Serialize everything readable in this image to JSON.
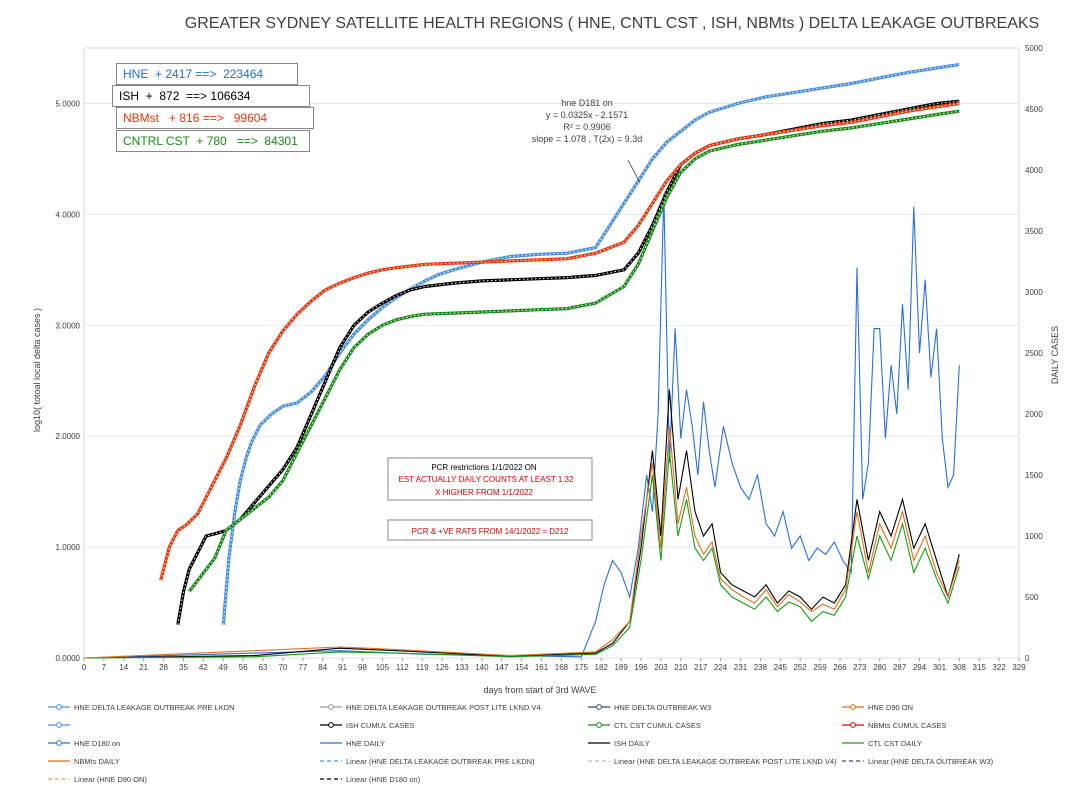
{
  "chart_data": {
    "type": "line",
    "title": "GREATER SYDNEY SATELLITE HEALTH REGIONS ( HNE,  CNTL CST , ISH, NBMts ) DELTA LEAKAGE OUTBREAKS",
    "xlabel": "days from start of 3rd WAVE",
    "ylabel_left": "log10( totoal local delta cases )",
    "ylabel_right": "DAILY CASES",
    "xlim": [
      0,
      329
    ],
    "ylim_left": [
      0,
      5.5
    ],
    "ylim_right": [
      0,
      5000
    ],
    "x_ticks": [
      "0",
      "7",
      "14",
      "21",
      "28",
      "35",
      "42",
      "49",
      "56",
      "63",
      "70",
      "77",
      "84",
      "91",
      "98",
      "105",
      "112",
      "119",
      "126",
      "133",
      "140",
      "147",
      "154",
      "161",
      "168",
      "175",
      "182",
      "189",
      "196",
      "203",
      "210",
      "217",
      "224",
      "231",
      "238",
      "245",
      "252",
      "259",
      "266",
      "273",
      "280",
      "287",
      "294",
      "301",
      "308",
      "315",
      "322",
      "329"
    ],
    "y_left_ticks": [
      "0.0000",
      "1.0000",
      "2.0000",
      "3.0000",
      "4.0000",
      "5.0000"
    ],
    "y_right_ticks": [
      "0",
      "500",
      "1000",
      "1500",
      "2000",
      "2500",
      "3000",
      "3500",
      "4000",
      "4500",
      "5000"
    ],
    "summary_boxes": [
      {
        "text": "HNE  + 2417 ==>  223464",
        "color": "#1f6fd6"
      },
      {
        "text": "ISH  +  872  ==> 106634",
        "color": "#000000"
      },
      {
        "text": "NBMst   + 816 ==>   99604",
        "color": "#e8380d"
      },
      {
        "text": "CNTRL CST  + 780   ==>  84301",
        "color": "#1a8a1a"
      }
    ],
    "regression_annotation": [
      "hne D181 on",
      "y = 0.0325x - 2.1571",
      "R² = 0.9906",
      "slope = 1.078 , T(2x) = 9.3d"
    ],
    "pcr_note": [
      "PCR restrictions 1/1/2022 ON",
      "EST ACTUALLY DAILY COUNTS AT LEAST 1.32",
      "X HIGHER FROM 1/1/2022"
    ],
    "rats_note": "PCR & +VE RATS FROM 14/1/2022 = D212",
    "legend": [
      "HNE DELTA LEAKAGE OUTBREAK PRE LKDN",
      "HNE DELTA LEAKAGE OUTBREAK POST LITE LKND V4",
      "HNE DELTA OUTBREAK W3",
      "HNE D90 ON",
      "",
      "ISH CUMUL CASES",
      "CTL CST CUMUL CASES",
      "NBMts CUMUL CASES",
      "HNE D180 on",
      "HNE DAILY",
      "ISH DAILY",
      "CTL CST DAILY",
      "NBMts DAILY",
      "Linear (HNE DELTA LEAKAGE OUTBREAK PRE LKDN)",
      "Linear (HNE DELTA LEAKAGE OUTBREAK POST LITE LKND V4)",
      "Linear (HNE DELTA OUTBREAK W3)",
      "Linear (HNE D90 ON)",
      "Linear (HNE D180 on)"
    ],
    "series_cumulative_log10": {
      "HNE": {
        "color": "#4a8fe0",
        "x": [
          49,
          51,
          53,
          55,
          57,
          59,
          62,
          66,
          70,
          75,
          80,
          85,
          90,
          95,
          100,
          105,
          110,
          115,
          120,
          125,
          130,
          140,
          150,
          160,
          170,
          180,
          185,
          190,
          195,
          200,
          205,
          210,
          215,
          220,
          230,
          240,
          250,
          260,
          270,
          280,
          290,
          300,
          308
        ],
        "y": [
          0.3,
          0.9,
          1.3,
          1.6,
          1.8,
          1.95,
          2.1,
          2.2,
          2.27,
          2.3,
          2.4,
          2.55,
          2.75,
          2.92,
          3.05,
          3.16,
          3.25,
          3.33,
          3.4,
          3.46,
          3.5,
          3.57,
          3.62,
          3.64,
          3.65,
          3.7,
          3.9,
          4.1,
          4.3,
          4.5,
          4.65,
          4.75,
          4.85,
          4.92,
          5.0,
          5.06,
          5.1,
          5.14,
          5.18,
          5.23,
          5.28,
          5.32,
          5.35
        ]
      },
      "ISH": {
        "color": "#000000",
        "x": [
          33,
          35,
          37,
          40,
          43,
          46,
          50,
          55,
          60,
          65,
          70,
          75,
          80,
          85,
          90,
          95,
          100,
          105,
          110,
          115,
          120,
          130,
          140,
          150,
          160,
          170,
          180,
          190,
          195,
          200,
          205,
          210,
          215,
          220,
          230,
          240,
          250,
          260,
          270,
          280,
          290,
          300,
          308
        ],
        "y": [
          0.3,
          0.6,
          0.8,
          0.95,
          1.1,
          1.12,
          1.15,
          1.25,
          1.4,
          1.55,
          1.7,
          1.9,
          2.2,
          2.5,
          2.8,
          3.0,
          3.12,
          3.2,
          3.27,
          3.32,
          3.35,
          3.38,
          3.4,
          3.41,
          3.42,
          3.43,
          3.45,
          3.5,
          3.65,
          3.9,
          4.2,
          4.45,
          4.55,
          4.62,
          4.68,
          4.72,
          4.77,
          4.82,
          4.85,
          4.9,
          4.95,
          5.0,
          5.02
        ]
      },
      "NBMts": {
        "color": "#e8380d",
        "x": [
          27,
          30,
          33,
          36,
          40,
          43,
          46,
          50,
          55,
          60,
          65,
          70,
          75,
          80,
          85,
          90,
          95,
          100,
          105,
          110,
          120,
          130,
          140,
          150,
          160,
          170,
          180,
          190,
          195,
          200,
          205,
          210,
          215,
          220,
          230,
          240,
          250,
          260,
          270,
          280,
          290,
          300,
          308
        ],
        "y": [
          0.7,
          1.0,
          1.15,
          1.2,
          1.3,
          1.45,
          1.6,
          1.8,
          2.1,
          2.45,
          2.75,
          2.95,
          3.1,
          3.22,
          3.32,
          3.38,
          3.43,
          3.47,
          3.5,
          3.52,
          3.55,
          3.56,
          3.57,
          3.58,
          3.59,
          3.6,
          3.65,
          3.75,
          3.9,
          4.1,
          4.3,
          4.45,
          4.55,
          4.62,
          4.68,
          4.72,
          4.76,
          4.8,
          4.83,
          4.88,
          4.93,
          4.97,
          5.0
        ]
      },
      "CTL_CST": {
        "color": "#1a8a1a",
        "x": [
          37,
          40,
          43,
          46,
          50,
          55,
          60,
          65,
          70,
          75,
          80,
          85,
          90,
          95,
          100,
          105,
          110,
          115,
          120,
          130,
          140,
          150,
          160,
          170,
          180,
          190,
          195,
          200,
          205,
          210,
          215,
          220,
          230,
          240,
          250,
          260,
          270,
          280,
          290,
          300,
          308
        ],
        "y": [
          0.6,
          0.7,
          0.8,
          0.9,
          1.15,
          1.25,
          1.35,
          1.45,
          1.6,
          1.85,
          2.1,
          2.35,
          2.6,
          2.8,
          2.92,
          3.0,
          3.05,
          3.08,
          3.1,
          3.11,
          3.12,
          3.13,
          3.14,
          3.15,
          3.2,
          3.35,
          3.55,
          3.85,
          4.15,
          4.38,
          4.5,
          4.57,
          4.63,
          4.67,
          4.71,
          4.75,
          4.78,
          4.82,
          4.86,
          4.9,
          4.93
        ]
      }
    },
    "series_daily": {
      "HNE_DAILY": {
        "color": "#2a6fdb",
        "x": [
          0,
          30,
          60,
          90,
          120,
          150,
          175,
          180,
          183,
          186,
          189,
          192,
          195,
          198,
          200,
          202,
          204,
          206,
          208,
          210,
          212,
          214,
          216,
          218,
          220,
          222,
          225,
          228,
          231,
          234,
          237,
          240,
          243,
          246,
          249,
          252,
          255,
          258,
          261,
          264,
          267,
          270,
          272,
          274,
          276,
          278,
          280,
          282,
          284,
          286,
          288,
          290,
          292,
          294,
          296,
          298,
          300,
          302,
          304,
          306,
          308
        ],
        "y": [
          0,
          20,
          40,
          60,
          30,
          20,
          10,
          300,
          600,
          800,
          700,
          500,
          900,
          1500,
          1200,
          2000,
          3800,
          1600,
          2700,
          1800,
          2200,
          1900,
          1500,
          2100,
          1700,
          1400,
          1900,
          1600,
          1400,
          1300,
          1500,
          1100,
          1000,
          1200,
          900,
          1000,
          800,
          900,
          850,
          950,
          800,
          700,
          3200,
          1300,
          1600,
          2700,
          2700,
          1800,
          2400,
          2000,
          2900,
          2200,
          3700,
          2500,
          3100,
          2300,
          2700,
          1800,
          1400,
          1500,
          2400
        ]
      },
      "ISH_DAILY": {
        "color": "#000000",
        "x": [
          0,
          60,
          90,
          110,
          150,
          180,
          186,
          192,
          196,
          200,
          203,
          206,
          209,
          212,
          215,
          218,
          221,
          224,
          228,
          232,
          236,
          240,
          244,
          248,
          252,
          256,
          260,
          264,
          268,
          272,
          276,
          280,
          284,
          288,
          292,
          296,
          300,
          304,
          308
        ],
        "y": [
          0,
          20,
          80,
          60,
          15,
          40,
          120,
          300,
          900,
          1700,
          1000,
          2200,
          1300,
          1700,
          1200,
          1000,
          1100,
          700,
          600,
          550,
          500,
          600,
          450,
          550,
          500,
          400,
          500,
          450,
          600,
          1300,
          800,
          1200,
          1000,
          1300,
          900,
          1100,
          800,
          500,
          850
        ]
      },
      "CTL_CST_DAILY": {
        "color": "#1a9a1a",
        "x": [
          0,
          60,
          90,
          110,
          150,
          180,
          186,
          192,
          196,
          200,
          203,
          206,
          209,
          212,
          215,
          218,
          221,
          224,
          228,
          232,
          236,
          240,
          244,
          248,
          252,
          256,
          260,
          264,
          268,
          272,
          276,
          280,
          284,
          288,
          292,
          296,
          300,
          304,
          308
        ],
        "y": [
          0,
          10,
          50,
          40,
          10,
          30,
          100,
          250,
          800,
          1500,
          800,
          1700,
          1000,
          1300,
          900,
          800,
          900,
          600,
          500,
          450,
          400,
          500,
          380,
          460,
          420,
          300,
          380,
          350,
          500,
          1000,
          650,
          1000,
          800,
          1100,
          700,
          900,
          650,
          450,
          750
        ]
      },
      "NBMts_DAILY": {
        "color": "#e07020",
        "x": [
          0,
          30,
          60,
          90,
          110,
          150,
          180,
          186,
          192,
          196,
          200,
          203,
          206,
          209,
          212,
          215,
          218,
          221,
          224,
          228,
          232,
          236,
          240,
          244,
          248,
          252,
          256,
          260,
          264,
          268,
          272,
          276,
          280,
          284,
          288,
          292,
          296,
          300,
          304,
          308
        ],
        "y": [
          0,
          30,
          60,
          90,
          70,
          20,
          50,
          150,
          300,
          1000,
          1600,
          900,
          1900,
          1100,
          1400,
          1000,
          850,
          950,
          650,
          560,
          500,
          450,
          560,
          420,
          520,
          460,
          380,
          440,
          400,
          560,
          1200,
          700,
          1100,
          900,
          1200,
          800,
          1000,
          700,
          500,
          800
        ]
      }
    }
  }
}
